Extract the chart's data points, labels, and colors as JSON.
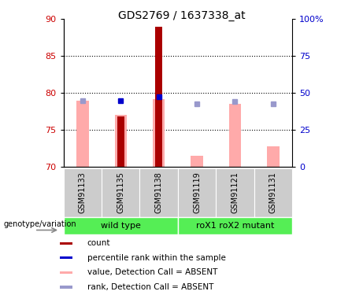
{
  "title": "GDS2769 / 1637338_at",
  "samples": [
    "GSM91133",
    "GSM91135",
    "GSM91138",
    "GSM91119",
    "GSM91121",
    "GSM91131"
  ],
  "ylim_left": [
    70,
    90
  ],
  "ylim_right": [
    0,
    100
  ],
  "yticks_left": [
    70,
    75,
    80,
    85,
    90
  ],
  "yticks_right": [
    0,
    25,
    50,
    75,
    100
  ],
  "ytick_labels_right": [
    "0",
    "25",
    "50",
    "75",
    "100%"
  ],
  "pink_bar_values": [
    79.0,
    77.0,
    79.2,
    71.5,
    78.5,
    72.8
  ],
  "dark_red_bar_values": [
    70.0,
    76.8,
    89.0,
    70.0,
    70.0,
    70.0
  ],
  "blue_sq_values": [
    79.0,
    79.0,
    79.5,
    78.5,
    78.8,
    78.5
  ],
  "blue_sq_dark": [
    false,
    true,
    true,
    false,
    false,
    false
  ],
  "blue_dark_color": "#0000cc",
  "blue_light_color": "#9999cc",
  "pink_bar_color": "#ffaaaa",
  "dark_red_color": "#aa0000",
  "bar_base": 70,
  "grid_dotted_at": [
    75,
    80,
    85
  ],
  "group_labels": [
    "wild type",
    "roX1 roX2 mutant"
  ],
  "group_color": "#55ee55",
  "sample_box_color": "#cccccc",
  "legend_labels": [
    "count",
    "percentile rank within the sample",
    "value, Detection Call = ABSENT",
    "rank, Detection Call = ABSENT"
  ],
  "legend_colors": [
    "#aa0000",
    "#0000cc",
    "#ffaaaa",
    "#9999cc"
  ],
  "left_ytick_color": "#cc0000",
  "right_ytick_color": "#0000cc",
  "title_fontsize": 10,
  "tick_fontsize": 8,
  "legend_fontsize": 7.5,
  "sample_fontsize": 7
}
